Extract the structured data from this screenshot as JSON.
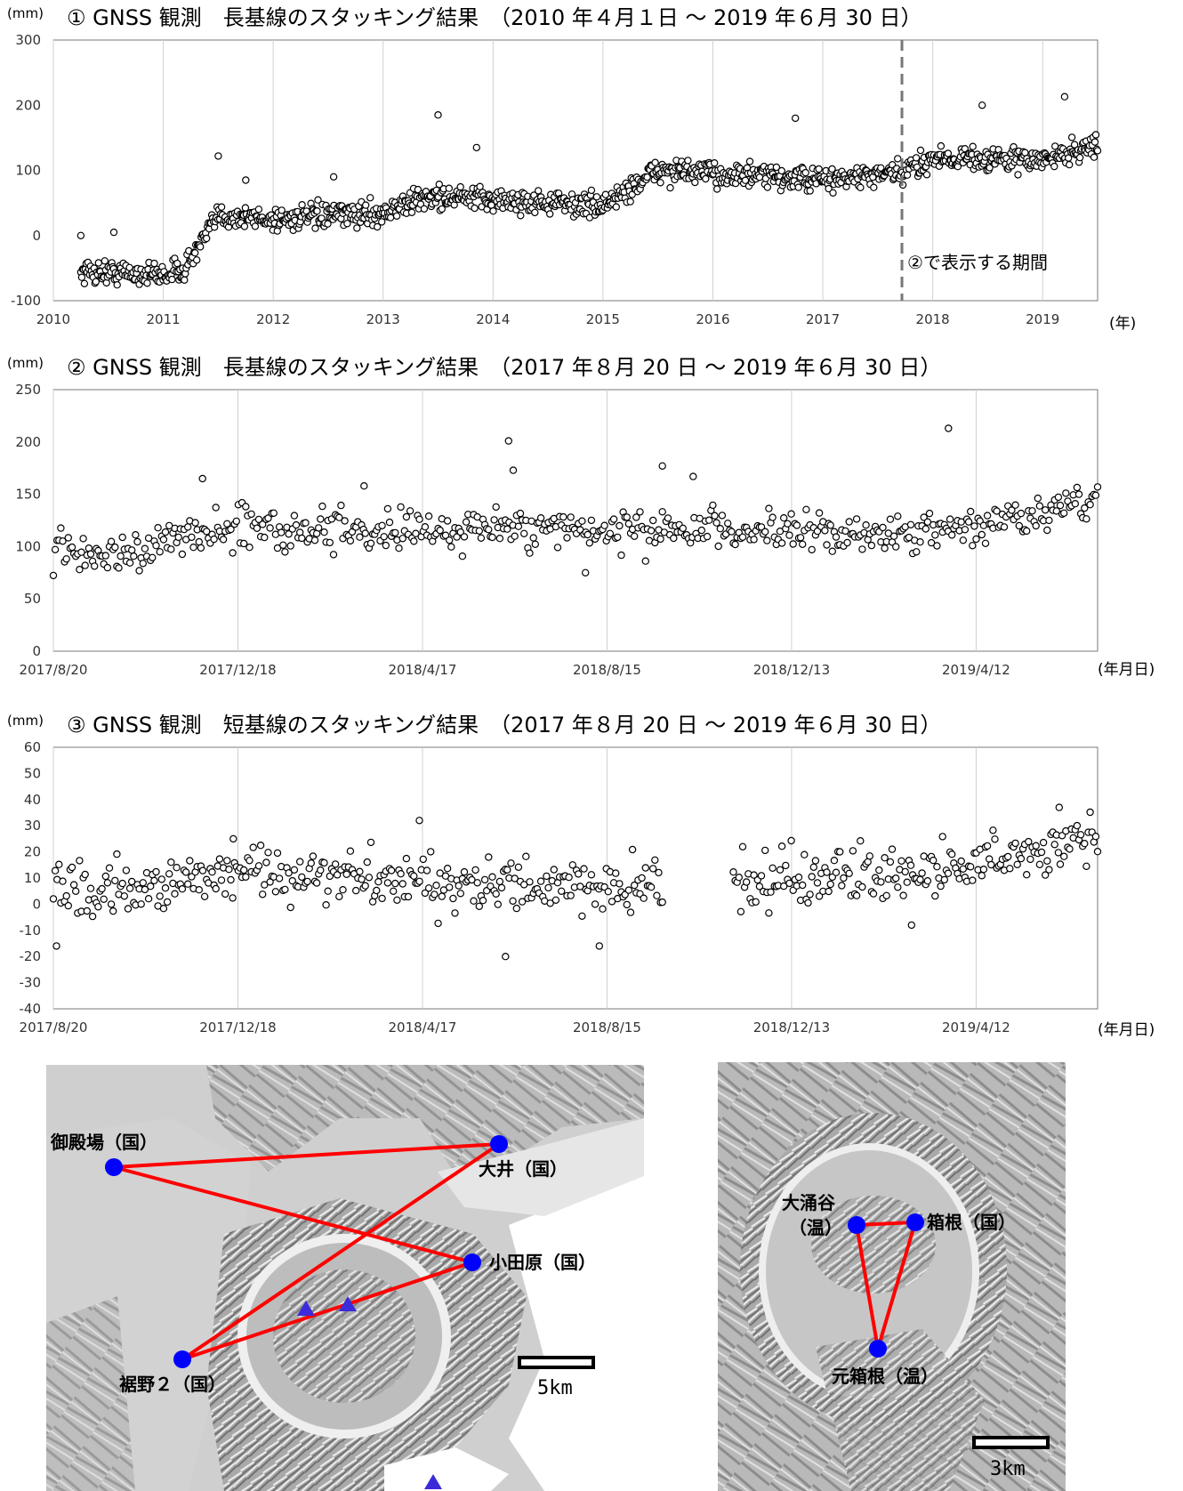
{
  "chart_data": [
    {
      "type": "scatter",
      "title": "① GNSS 観測　長基線のスタッキング結果　（2010 年４月１日 ～ 2019 年６月 30 日）",
      "ylabel": "(mm)",
      "xlabel": "(年)",
      "ylim": [
        -100,
        300
      ],
      "xlim": [
        2010.0,
        2019.5
      ],
      "yticks": [
        -100,
        0,
        100,
        200,
        300
      ],
      "xticks": [
        "2010",
        "2011",
        "2012",
        "2013",
        "2014",
        "2015",
        "2016",
        "2017",
        "2018",
        "2019"
      ],
      "grid": "vertical",
      "annotation": "②で表示する期間",
      "annotation_x": 2017.72,
      "series": [
        {
          "marker": "open-circle",
          "trend_x": [
            2010.25,
            2011.0,
            2011.2,
            2011.5,
            2012.0,
            2013.0,
            2013.4,
            2014.0,
            2015.0,
            2015.5,
            2016.0,
            2017.0,
            2017.72,
            2018.0,
            2019.0,
            2019.5
          ],
          "trend_y": [
            -55,
            -60,
            -50,
            30,
            25,
            35,
            60,
            55,
            45,
            100,
            95,
            85,
            95,
            120,
            115,
            140
          ],
          "outliers_x": [
            2010.25,
            2010.55,
            2011.5,
            2011.75,
            2012.55,
            2013.5,
            2013.85,
            2016.75,
            2018.45,
            2019.2
          ],
          "outliers_y": [
            0,
            5,
            122,
            85,
            90,
            185,
            135,
            180,
            200,
            213
          ]
        }
      ]
    },
    {
      "type": "scatter",
      "title": "② GNSS 観測　長基線のスタッキング結果　（2017 年８月 20 日 ～ 2019 年６月 30 日）",
      "ylabel": "(mm)",
      "xlabel": "(年月日)",
      "ylim": [
        0,
        250
      ],
      "yticks": [
        0,
        50,
        100,
        150,
        200,
        250
      ],
      "xticks": [
        "2017/8/20",
        "2017/12/18",
        "2018/4/17",
        "2018/8/15",
        "2018/12/13",
        "2019/4/12"
      ],
      "grid": "vertical",
      "series": [
        {
          "marker": "open-circle",
          "trend_x": [
            "2017/8/20",
            "2017/10/10",
            "2017/12/18",
            "2018/4/17",
            "2018/8/15",
            "2018/12/13",
            "2019/4/12",
            "2019/6/30"
          ],
          "trend_y": [
            95,
            95,
            120,
            115,
            115,
            112,
            118,
            145
          ],
          "outliers_x": [
            "2018/6/12",
            "2018/6/15",
            "2018/9/20",
            "2018/10/10",
            "2017/11/25",
            "2019/3/25",
            "2018/8/1",
            "2018/3/10"
          ],
          "outliers_y": [
            201,
            173,
            177,
            167,
            165,
            213,
            75,
            158
          ]
        }
      ]
    },
    {
      "type": "scatter",
      "title": "③ GNSS 観測　短基線のスタッキング結果　（2017 年８月 20 日 ～ 2019 年６月 30 日）",
      "ylabel": "(mm)",
      "xlabel": "(年月日)",
      "ylim": [
        -40,
        60
      ],
      "yticks": [
        -40,
        -30,
        -20,
        -10,
        0,
        10,
        20,
        30,
        40,
        50,
        60
      ],
      "xticks": [
        "2017/8/20",
        "2017/12/18",
        "2018/4/17",
        "2018/8/15",
        "2018/12/13",
        "2019/4/12"
      ],
      "grid": "vertical",
      "series": [
        {
          "marker": "open-circle",
          "trend_x": [
            "2017/8/20",
            "2017/12/18",
            "2018/4/17",
            "2018/8/15",
            "2018/12/13",
            "2019/4/12",
            "2019/6/30"
          ],
          "trend_y": [
            3,
            12,
            8,
            7,
            10,
            15,
            25
          ],
          "gap_x": [
            "2018/9/20",
            "2018/11/5"
          ],
          "outliers_x": [
            "2017/8/22",
            "2018/4/15",
            "2018/6/10",
            "2018/8/10",
            "2019/3/1",
            "2019/6/5",
            "2017/12/15"
          ],
          "outliers_y": [
            -16,
            32,
            -20,
            -16,
            -8,
            37,
            25
          ]
        }
      ]
    }
  ],
  "map_left": {
    "stations": [
      "御殿場（国）",
      "大井（国）",
      "小田原（国）",
      "裾野２（国）"
    ],
    "scale": "5km",
    "line_color": "#ff0000",
    "station_color": "#0000ff",
    "vent_color": "#3b2bd8"
  },
  "map_right": {
    "stations": [
      "大涌谷",
      "（温）",
      "箱根（国）",
      "元箱根（温）"
    ],
    "scale": "3km"
  }
}
